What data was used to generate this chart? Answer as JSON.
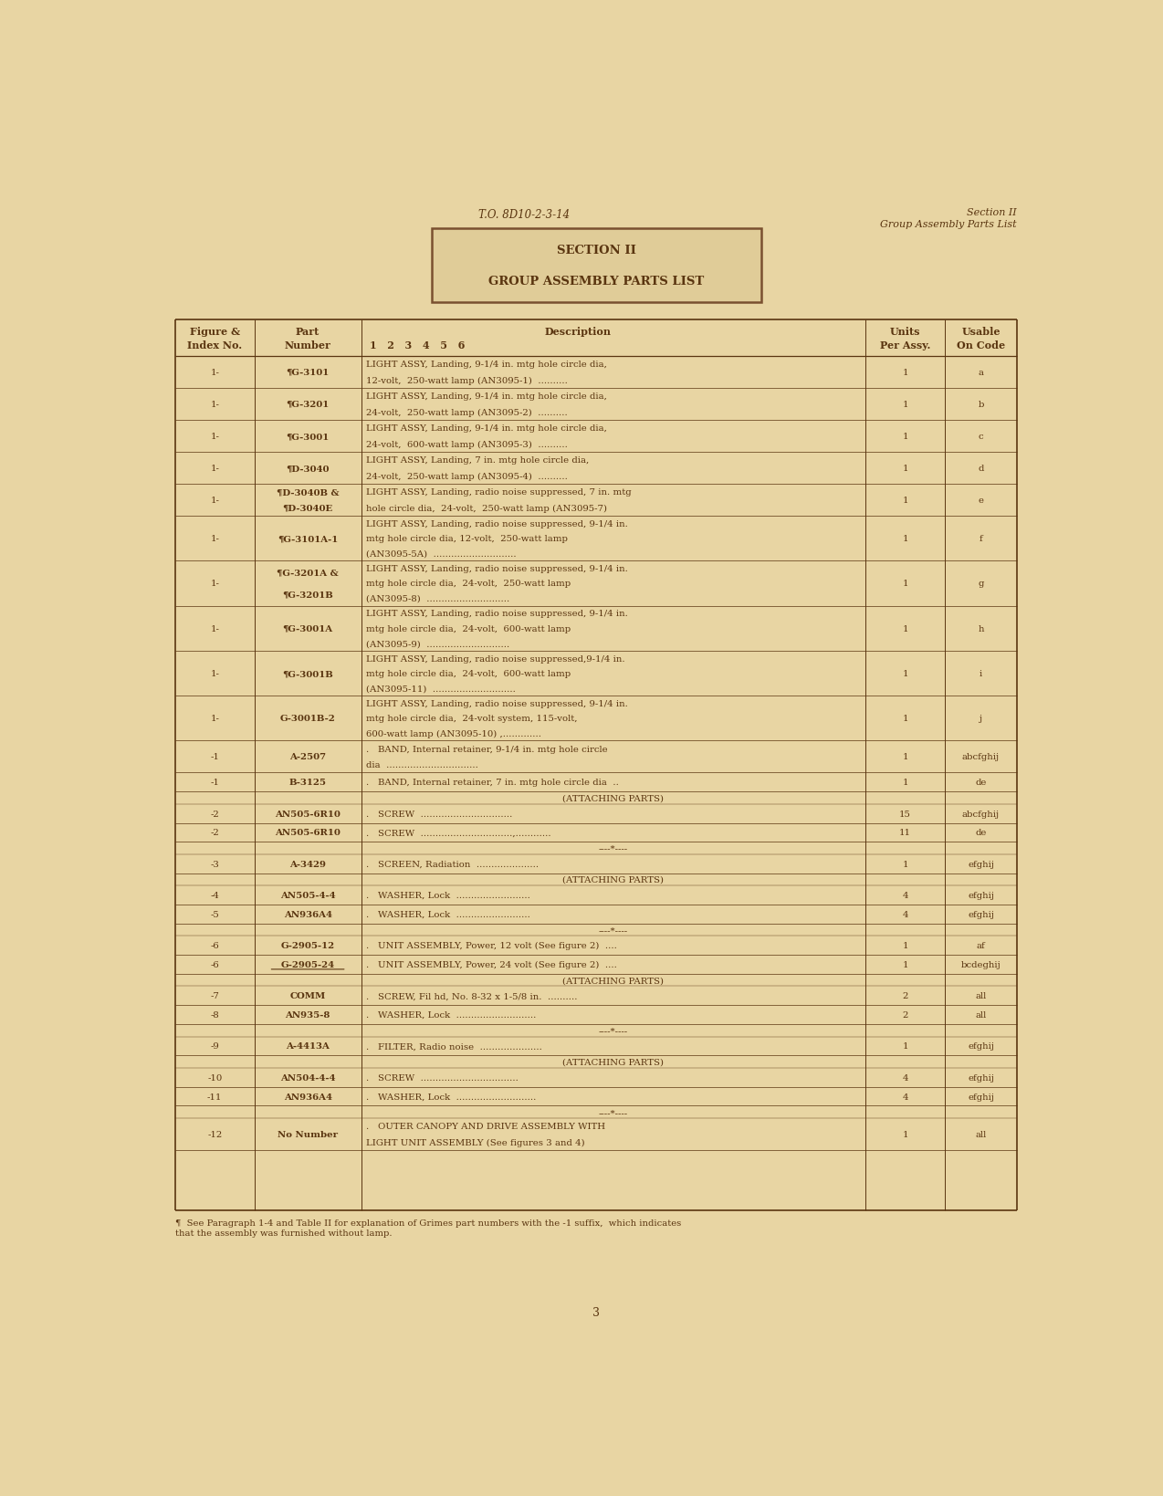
{
  "page_bg": "#e8d5a3",
  "table_bg": "#ede0b8",
  "text_color": "#5a3510",
  "header_left": "T.O. 8D10-2-3-14",
  "header_right_line1": "Section II",
  "header_right_line2": "Group Assembly Parts List",
  "section_title_line1": "SECTION II",
  "section_title_line2": "GROUP ASSEMBLY PARTS LIST",
  "col_sub": "1   2   3   4   5   6",
  "page_num": "3",
  "footer_note": "¶  See Paragraph 1-4 and Table II for explanation of Grimes part numbers with the -1 suffix,  which indicates\nthat the assembly was furnished without lamp.",
  "rows": [
    {
      "fig": "1-",
      "part": "¶G-3101",
      "desc1": "LIGHT ASSY, Landing, 9-1/4 in. mtg hole circle dia,",
      "desc2": "12-volt,  250-watt lamp (AN3095-1)  ..........",
      "desc3": "",
      "units": "1",
      "code": "a"
    },
    {
      "fig": "1-",
      "part": "¶G-3201",
      "desc1": "LIGHT ASSY, Landing, 9-1/4 in. mtg hole circle dia,",
      "desc2": "24-volt,  250-watt lamp (AN3095-2)  ..........",
      "desc3": "",
      "units": "1",
      "code": "b"
    },
    {
      "fig": "1-",
      "part": "¶G-3001",
      "desc1": "LIGHT ASSY, Landing, 9-1/4 in. mtg hole circle dia,",
      "desc2": "24-volt,  600-watt lamp (AN3095-3)  ..........",
      "desc3": "",
      "units": "1",
      "code": "c"
    },
    {
      "fig": "1-",
      "part": "¶D-3040",
      "desc1": "LIGHT ASSY, Landing, 7 in. mtg hole circle dia,",
      "desc2": "24-volt,  250-watt lamp (AN3095-4)  ..........",
      "desc3": "",
      "units": "1",
      "code": "d"
    },
    {
      "fig": "1-",
      "part": "¶D-3040B &\n¶D-3040E",
      "desc1": "LIGHT ASSY, Landing, radio noise suppressed, 7 in. mtg",
      "desc2": "hole circle dia,  24-volt,  250-watt lamp (AN3095-7)",
      "desc3": "",
      "units": "1",
      "code": "e"
    },
    {
      "fig": "1-",
      "part": "¶G-3101A-1",
      "desc1": "LIGHT ASSY, Landing, radio noise suppressed, 9-1/4 in.",
      "desc2": "mtg hole circle dia, 12-volt,  250-watt lamp",
      "desc3": "(AN3095-5A)  ............................",
      "units": "1",
      "code": "f"
    },
    {
      "fig": "1-",
      "part": "¶G-3201A &\n¶G-3201B",
      "desc1": "LIGHT ASSY, Landing, radio noise suppressed, 9-1/4 in.",
      "desc2": "mtg hole circle dia,  24-volt,  250-watt lamp",
      "desc3": "(AN3095-8)  ............................",
      "units": "1",
      "code": "g"
    },
    {
      "fig": "1-",
      "part": "¶G-3001A",
      "desc1": "LIGHT ASSY, Landing, radio noise suppressed, 9-1/4 in.",
      "desc2": "mtg hole circle dia,  24-volt,  600-watt lamp",
      "desc3": "(AN3095-9)  ............................",
      "units": "1",
      "code": "h"
    },
    {
      "fig": "1-",
      "part": "¶G-3001B",
      "desc1": "LIGHT ASSY, Landing, radio noise suppressed,9-1/4 in.",
      "desc2": "mtg hole circle dia,  24-volt,  600-watt lamp",
      "desc3": "(AN3095-11)  ............................",
      "units": "1",
      "code": "i"
    },
    {
      "fig": "1-",
      "part": "G-3001B-2",
      "desc1": "LIGHT ASSY, Landing, radio noise suppressed, 9-1/4 in.",
      "desc2": "mtg hole circle dia,  24-volt system, 115-volt,",
      "desc3": "600-watt lamp (AN3095-10) ,.............",
      "units": "1",
      "code": "j"
    },
    {
      "fig": "-1",
      "part": "A-2507",
      "desc1": ".   BAND, Internal retainer, 9-1/4 in. mtg hole circle",
      "desc2": "dia  ...............................",
      "desc3": "",
      "units": "1",
      "code": "abcfghij"
    },
    {
      "fig": "-1",
      "part": "B-3125",
      "desc1": ".   BAND, Internal retainer, 7 in. mtg hole circle dia  ..",
      "desc2": "",
      "desc3": "",
      "units": "1",
      "code": "de"
    },
    {
      "fig": "",
      "part": "",
      "desc1": "(ATTACHING PARTS)",
      "desc2": "",
      "desc3": "",
      "units": "",
      "code": "",
      "center": true
    },
    {
      "fig": "-2",
      "part": "AN505-6R10",
      "desc1": ".   SCREW  ...............................",
      "desc2": "",
      "desc3": "",
      "units": "15",
      "code": "abcfghij"
    },
    {
      "fig": "-2",
      "part": "AN505-6R10",
      "desc1": ".   SCREW  ...............................,............",
      "desc2": "",
      "desc3": "",
      "units": "11",
      "code": "de"
    },
    {
      "fig": "",
      "part": "",
      "desc1": "----*----",
      "desc2": "",
      "desc3": "",
      "units": "",
      "code": "",
      "center": true
    },
    {
      "fig": "-3",
      "part": "A-3429",
      "desc1": ".   SCREEN, Radiation  .....................",
      "desc2": "",
      "desc3": "",
      "units": "1",
      "code": "efghij"
    },
    {
      "fig": "",
      "part": "",
      "desc1": "(ATTACHING PARTS)",
      "desc2": "",
      "desc3": "",
      "units": "",
      "code": "",
      "center": true
    },
    {
      "fig": "-4",
      "part": "AN505-4-4",
      "desc1": ".   WASHER, Lock  .........................",
      "desc2": "",
      "desc3": "",
      "units": "4",
      "code": "efghij"
    },
    {
      "fig": "-5",
      "part": "AN936A4",
      "desc1": ".   WASHER, Lock  .........................",
      "desc2": "",
      "desc3": "",
      "units": "4",
      "code": "efghij"
    },
    {
      "fig": "",
      "part": "",
      "desc1": "----*----",
      "desc2": "",
      "desc3": "",
      "units": "",
      "code": "",
      "center": true
    },
    {
      "fig": "-6",
      "part": "G-2905-12",
      "desc1": ".   UNIT ASSEMBLY, Power, 12 volt (See figure 2)  ....",
      "desc2": "",
      "desc3": "",
      "units": "1",
      "code": "af"
    },
    {
      "fig": "-6",
      "part": "G-2905-24",
      "desc1": ".   UNIT ASSEMBLY, Power, 24 volt (See figure 2)  ....",
      "desc2": "",
      "desc3": "",
      "units": "1",
      "code": "bcdeghij",
      "underline_part": true
    },
    {
      "fig": "",
      "part": "",
      "desc1": "(ATTACHING PARTS)",
      "desc2": "",
      "desc3": "",
      "units": "",
      "code": "",
      "center": true
    },
    {
      "fig": "-7",
      "part": "COMM",
      "desc1": ".   SCREW, Fil hd, No. 8-32 x 1-5/8 in.  ..........",
      "desc2": "",
      "desc3": "",
      "units": "2",
      "code": "all"
    },
    {
      "fig": "-8",
      "part": "AN935-8",
      "desc1": ".   WASHER, Lock  ...........................",
      "desc2": "",
      "desc3": "",
      "units": "2",
      "code": "all"
    },
    {
      "fig": "",
      "part": "",
      "desc1": "----*----",
      "desc2": "",
      "desc3": "",
      "units": "",
      "code": "",
      "center": true
    },
    {
      "fig": "-9",
      "part": "A-4413A",
      "desc1": ".   FILTER, Radio noise  .....................",
      "desc2": "",
      "desc3": "",
      "units": "1",
      "code": "efghij"
    },
    {
      "fig": "",
      "part": "",
      "desc1": "(ATTACHING PARTS)",
      "desc2": "",
      "desc3": "",
      "units": "",
      "code": "",
      "center": true
    },
    {
      "fig": "-10",
      "part": "AN504-4-4",
      "desc1": ".   SCREW  .................................",
      "desc2": "",
      "desc3": "",
      "units": "4",
      "code": "efghij"
    },
    {
      "fig": "-11",
      "part": "AN936A4",
      "desc1": ".   WASHER, Lock  ...........................",
      "desc2": "",
      "desc3": "",
      "units": "4",
      "code": "efghij"
    },
    {
      "fig": "",
      "part": "",
      "desc1": "----*----",
      "desc2": "",
      "desc3": "",
      "units": "",
      "code": "",
      "center": true
    },
    {
      "fig": "-12",
      "part": "No Number",
      "desc1": ".   OUTER CANOPY AND DRIVE ASSEMBLY WITH",
      "desc2": "LIGHT UNIT ASSEMBLY (See figures 3 and 4)",
      "desc3": "",
      "units": "1",
      "code": "all"
    }
  ]
}
